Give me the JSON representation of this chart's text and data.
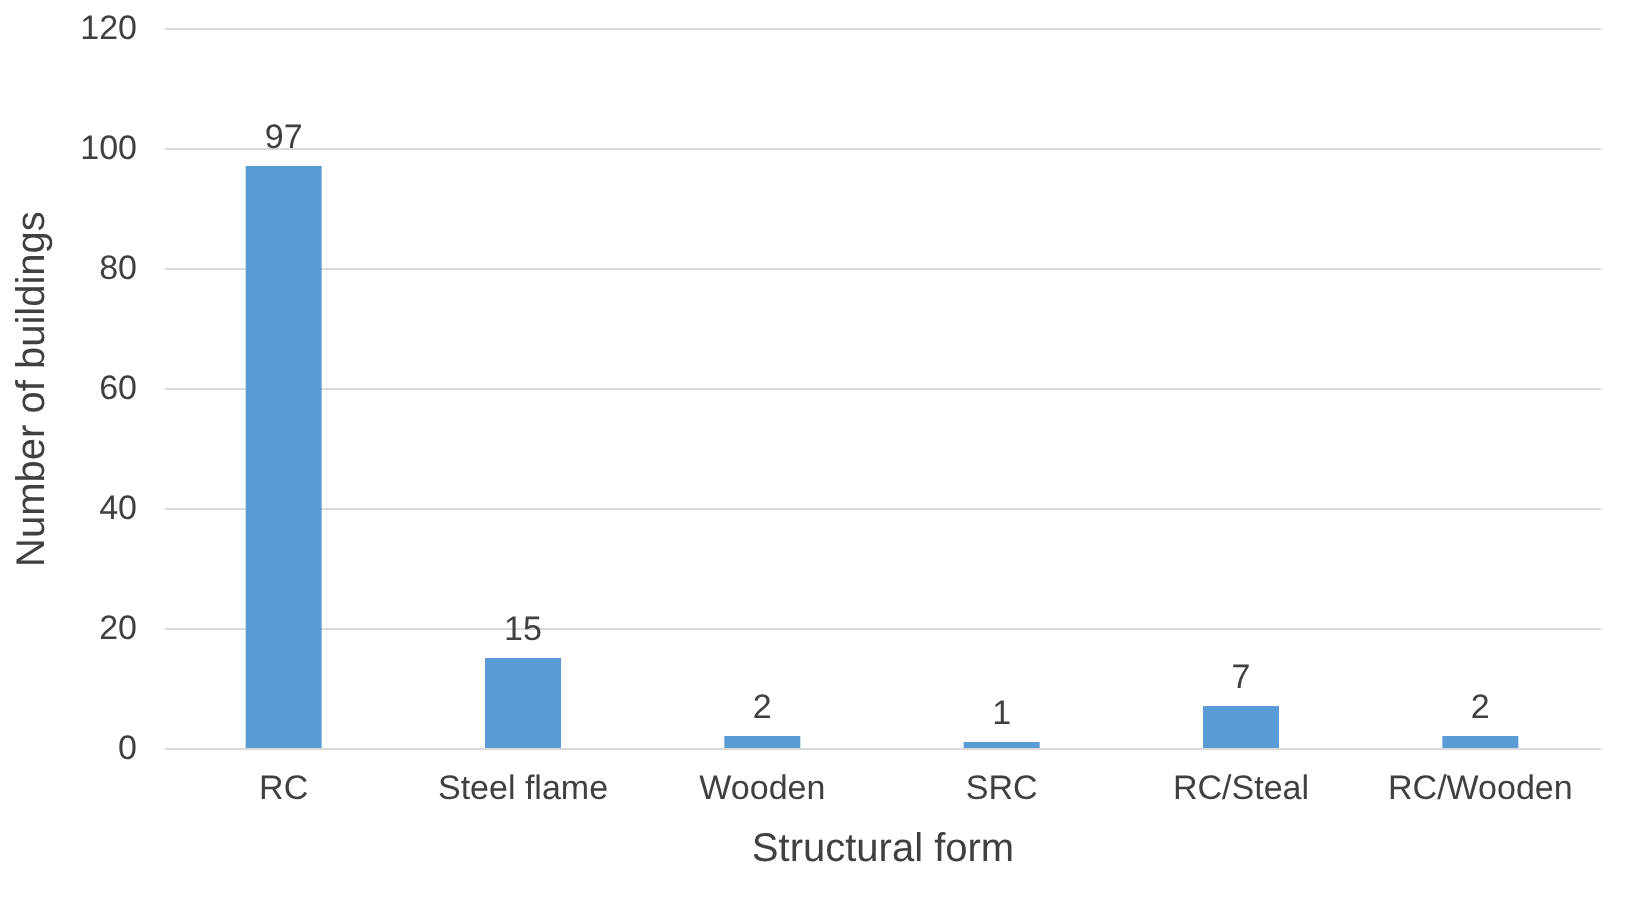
{
  "chart_data": {
    "type": "bar",
    "xlabel": "Structural form",
    "ylabel": "Number of buildings",
    "categories": [
      "RC",
      "Steel flame",
      "Wooden",
      "SRC",
      "RC/Steal",
      "RC/Wooden"
    ],
    "values": [
      97,
      15,
      2,
      1,
      7,
      2
    ],
    "color": "#5b9bd5",
    "ylim": [
      0,
      120
    ],
    "yticks": [
      0,
      20,
      40,
      60,
      80,
      100,
      120
    ],
    "grid": "y",
    "data_labels": true
  }
}
